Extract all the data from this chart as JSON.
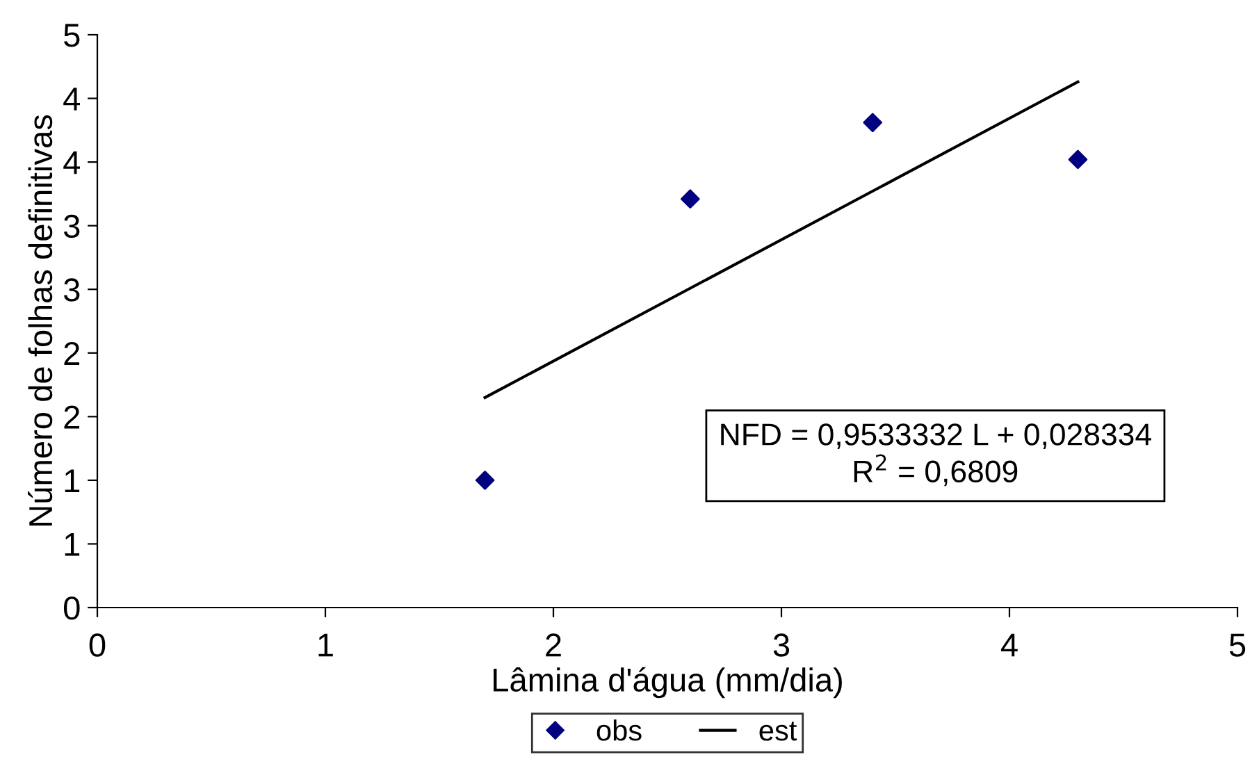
{
  "chart_data": {
    "type": "scatter",
    "xlabel": "Lâmina d'água (mm/dia)",
    "ylabel": "Número de folhas definitivas",
    "series": [
      {
        "name": "obs",
        "color": "#000080",
        "marker": "diamond",
        "x": [
          1.7,
          2.6,
          3.4,
          4.3
        ],
        "values": [
          1.0,
          3.21,
          3.81,
          3.52
        ]
      },
      {
        "name": "est",
        "type": "line",
        "color": "#000000",
        "marker": "none",
        "x": [
          1.7,
          4.3
        ],
        "values": [
          1.65,
          4.13
        ]
      }
    ],
    "xlim": [
      0,
      5
    ],
    "xticks": [
      0,
      1,
      2,
      3,
      4,
      5
    ],
    "ylim": [
      0,
      4.5
    ],
    "yticks": [
      0,
      {
        "value": 0.5,
        "label": "1"
      },
      {
        "value": 1,
        "label": "1"
      },
      {
        "value": 1.5,
        "label": "2"
      },
      {
        "value": 2,
        "label": "2"
      },
      {
        "value": 2.5,
        "label": "3"
      },
      {
        "value": 3,
        "label": "3"
      },
      {
        "value": 3.5,
        "label": "4"
      },
      {
        "value": 4,
        "label": "4"
      },
      {
        "value": 4.5,
        "label": "5"
      }
    ],
    "grid": false,
    "legend": "bottom",
    "annotations": [
      "NFD = 0,9533332 L + 0,028334\nR$^{2}$ = 0,6809"
    ]
  }
}
